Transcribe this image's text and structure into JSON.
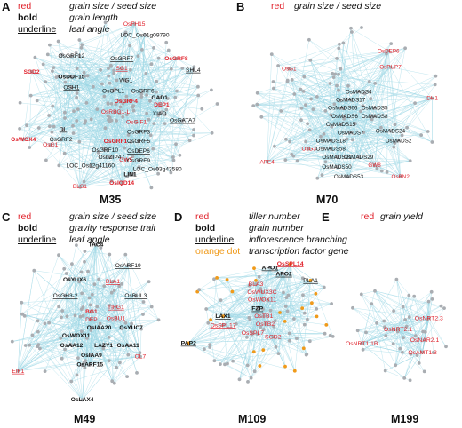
{
  "colors": {
    "red": "#e0212b",
    "black": "#111111",
    "orange": "#f09a1a",
    "edge": "#9fd8e6",
    "node": "#a9adb2"
  },
  "panels": [
    {
      "letter": "A",
      "module": "M35",
      "legend": [
        {
          "key": "red",
          "style": "red",
          "desc": "grain size / seed size"
        },
        {
          "key": "bold",
          "style": "bold",
          "desc": "grain length"
        },
        {
          "key": "underline",
          "style": "ul",
          "desc": "leaf angle"
        }
      ],
      "genes": [
        {
          "t": "OsFH15",
          "c": "red"
        },
        {
          "t": "LOC_Os01g09790",
          "c": "black"
        },
        {
          "t": "OsGRF12",
          "c": "black"
        },
        {
          "t": "OsGRF7",
          "c": "black",
          "u": true
        },
        {
          "t": "SG1",
          "c": "red",
          "u": true
        },
        {
          "t": "OsGRF8",
          "c": "red",
          "b": true
        },
        {
          "t": "SHL4",
          "c": "black",
          "u": true
        },
        {
          "t": "SGD2",
          "c": "red",
          "b": true
        },
        {
          "t": "OsDOF15",
          "c": "black",
          "b": true
        },
        {
          "t": "OSH1",
          "c": "black",
          "u": true
        },
        {
          "t": "WG1",
          "c": "black"
        },
        {
          "t": "OsOPL1",
          "c": "black"
        },
        {
          "t": "OsGRF6",
          "c": "black"
        },
        {
          "t": "GAD1",
          "c": "black",
          "b": true
        },
        {
          "t": "OsGRF4",
          "c": "red",
          "b": true
        },
        {
          "t": "DEP1",
          "c": "red",
          "b": true
        },
        {
          "t": "OsRBG1-L",
          "c": "red"
        },
        {
          "t": "XIAO",
          "c": "black"
        },
        {
          "t": "OsGIF1",
          "c": "red"
        },
        {
          "t": "OsGATA7",
          "c": "black",
          "u": true
        },
        {
          "t": "OsGRF3",
          "c": "black"
        },
        {
          "t": "OsWOX4",
          "c": "red",
          "b": true
        },
        {
          "t": "DL",
          "c": "black",
          "u": true
        },
        {
          "t": "OsGRF2",
          "c": "black"
        },
        {
          "t": "OsGRF5",
          "c": "black"
        },
        {
          "t": "OsGRF10",
          "c": "black"
        },
        {
          "t": "OsG1",
          "c": "red"
        },
        {
          "t": "OsGRF1",
          "c": "red",
          "b": true
        },
        {
          "t": "OsbZIP47",
          "c": "black"
        },
        {
          "t": "OsDEP6",
          "c": "black",
          "u": true
        },
        {
          "t": "GW5",
          "c": "red"
        },
        {
          "t": "LOC_Os12g41160",
          "c": "black"
        },
        {
          "t": "OsGRF9",
          "c": "black"
        },
        {
          "t": "LIN1",
          "c": "black",
          "b": true
        },
        {
          "t": "LOC_Os03g43580",
          "c": "black"
        },
        {
          "t": "OsIQD14",
          "c": "red",
          "b": true
        },
        {
          "t": "BLS1",
          "c": "red"
        }
      ]
    },
    {
      "letter": "B",
      "module": "M70",
      "legend": [
        {
          "key": "red",
          "style": "red",
          "desc": "grain size / seed size"
        }
      ],
      "genes": [
        {
          "t": "OsDEP6",
          "c": "red"
        },
        {
          "t": "OsG1",
          "c": "red"
        },
        {
          "t": "OsPUP7",
          "c": "red"
        },
        {
          "t": "DH1",
          "c": "red"
        },
        {
          "t": "OsMADS4",
          "c": "black"
        },
        {
          "t": "OsMADS17",
          "c": "black"
        },
        {
          "t": "OsMADS66",
          "c": "black"
        },
        {
          "t": "OsMADS5",
          "c": "black"
        },
        {
          "t": "OsMADS6",
          "c": "black"
        },
        {
          "t": "OsMADS15",
          "c": "black"
        },
        {
          "t": "OsMADS7",
          "c": "black"
        },
        {
          "t": "OsMADS24",
          "c": "black"
        },
        {
          "t": "OsMADS18",
          "c": "black"
        },
        {
          "t": "OsMADS2",
          "c": "black"
        },
        {
          "t": "OsMADS8",
          "c": "black"
        },
        {
          "t": "OsG3",
          "c": "red"
        },
        {
          "t": "OsMADS58",
          "c": "black"
        },
        {
          "t": "OsMADS29",
          "c": "black"
        },
        {
          "t": "OsMADS21",
          "c": "black"
        },
        {
          "t": "GW8",
          "c": "red"
        },
        {
          "t": "APE4",
          "c": "red"
        },
        {
          "t": "OsMADS50",
          "c": "black"
        },
        {
          "t": "OsMADS53",
          "c": "black"
        },
        {
          "t": "OsBN2",
          "c": "red"
        }
      ]
    },
    {
      "letter": "C",
      "module": "M49",
      "legend": [
        {
          "key": "red",
          "style": "red",
          "desc": "grain size / seed size"
        },
        {
          "key": "bold",
          "style": "bold",
          "desc": "gravity response trait"
        },
        {
          "key": "underline",
          "style": "ul",
          "desc": "leaf angle"
        }
      ],
      "genes": [
        {
          "t": "TAC4",
          "c": "black",
          "b": true
        },
        {
          "t": "OsARF19",
          "c": "black",
          "u": true
        },
        {
          "t": "OsYUX6",
          "c": "black",
          "b": true
        },
        {
          "t": "BLA1",
          "c": "red",
          "u": true
        },
        {
          "t": "OsGH3-2",
          "c": "black",
          "u": true
        },
        {
          "t": "OsBUL3",
          "c": "black",
          "u": true
        },
        {
          "t": "BG1",
          "c": "red",
          "b": true
        },
        {
          "t": "TIFG1",
          "c": "red",
          "u": true
        },
        {
          "t": "DEP",
          "c": "red"
        },
        {
          "t": "OsBU1",
          "c": "red",
          "u": true
        },
        {
          "t": "OsIAA20",
          "c": "black",
          "b": true
        },
        {
          "t": "OsYUC7",
          "c": "black",
          "b": true
        },
        {
          "t": "OsWOX11",
          "c": "black",
          "b": true
        },
        {
          "t": "OsAA12",
          "c": "black",
          "b": true
        },
        {
          "t": "LAZY1",
          "c": "black",
          "b": true
        },
        {
          "t": "OsAA11",
          "c": "black",
          "b": true
        },
        {
          "t": "OsIAA9",
          "c": "black",
          "b": true
        },
        {
          "t": "OsARF15",
          "c": "black",
          "b": true
        },
        {
          "t": "OL7",
          "c": "red"
        },
        {
          "t": "EIF1",
          "c": "red",
          "u": true
        },
        {
          "t": "OsLAX4",
          "c": "black",
          "b": true
        }
      ]
    },
    {
      "letter": "D",
      "module": "M109",
      "legend": [
        {
          "key": "red",
          "style": "red",
          "desc": "tiller number"
        },
        {
          "key": "bold",
          "style": "bold",
          "desc": "grain number"
        },
        {
          "key": "underline",
          "style": "ul",
          "desc": "inflorescence branching"
        },
        {
          "key": "orange dot",
          "style": "orange",
          "desc": "transcription factor gene"
        }
      ],
      "genes": [
        {
          "t": "OsSPL14",
          "c": "red",
          "b": true,
          "u": true
        },
        {
          "t": "APO1",
          "c": "black",
          "b": true,
          "u": true
        },
        {
          "t": "APO2",
          "c": "black",
          "b": true,
          "u": true
        },
        {
          "t": "BLA3",
          "c": "red"
        },
        {
          "t": "PLA1",
          "c": "black",
          "u": true
        },
        {
          "t": "OsWUX3C",
          "c": "red"
        },
        {
          "t": "OsWOX11",
          "c": "red"
        },
        {
          "t": "FZP",
          "c": "black",
          "b": true,
          "u": true
        },
        {
          "t": "LAX1",
          "c": "black",
          "b": true,
          "u": true
        },
        {
          "t": "OsSPL17",
          "c": "red",
          "u": true
        },
        {
          "t": "OsTB1",
          "c": "red"
        },
        {
          "t": "OsTB2",
          "c": "red"
        },
        {
          "t": "PAP2",
          "c": "black",
          "b": true,
          "u": true
        },
        {
          "t": "OsSPL7",
          "c": "red"
        },
        {
          "t": "SGD2",
          "c": "red"
        }
      ]
    },
    {
      "letter": "E",
      "module": "M199",
      "legend": [
        {
          "key": "red",
          "style": "red",
          "desc": "grain yield"
        }
      ],
      "genes": [
        {
          "t": "OsNRT2.3",
          "c": "red"
        },
        {
          "t": "OsNRT2.1",
          "c": "red"
        },
        {
          "t": "OsNAR2.1",
          "c": "red"
        },
        {
          "t": "OsNRT1.1B",
          "c": "red"
        },
        {
          "t": "OsAMT1.3",
          "c": "red"
        }
      ]
    }
  ]
}
